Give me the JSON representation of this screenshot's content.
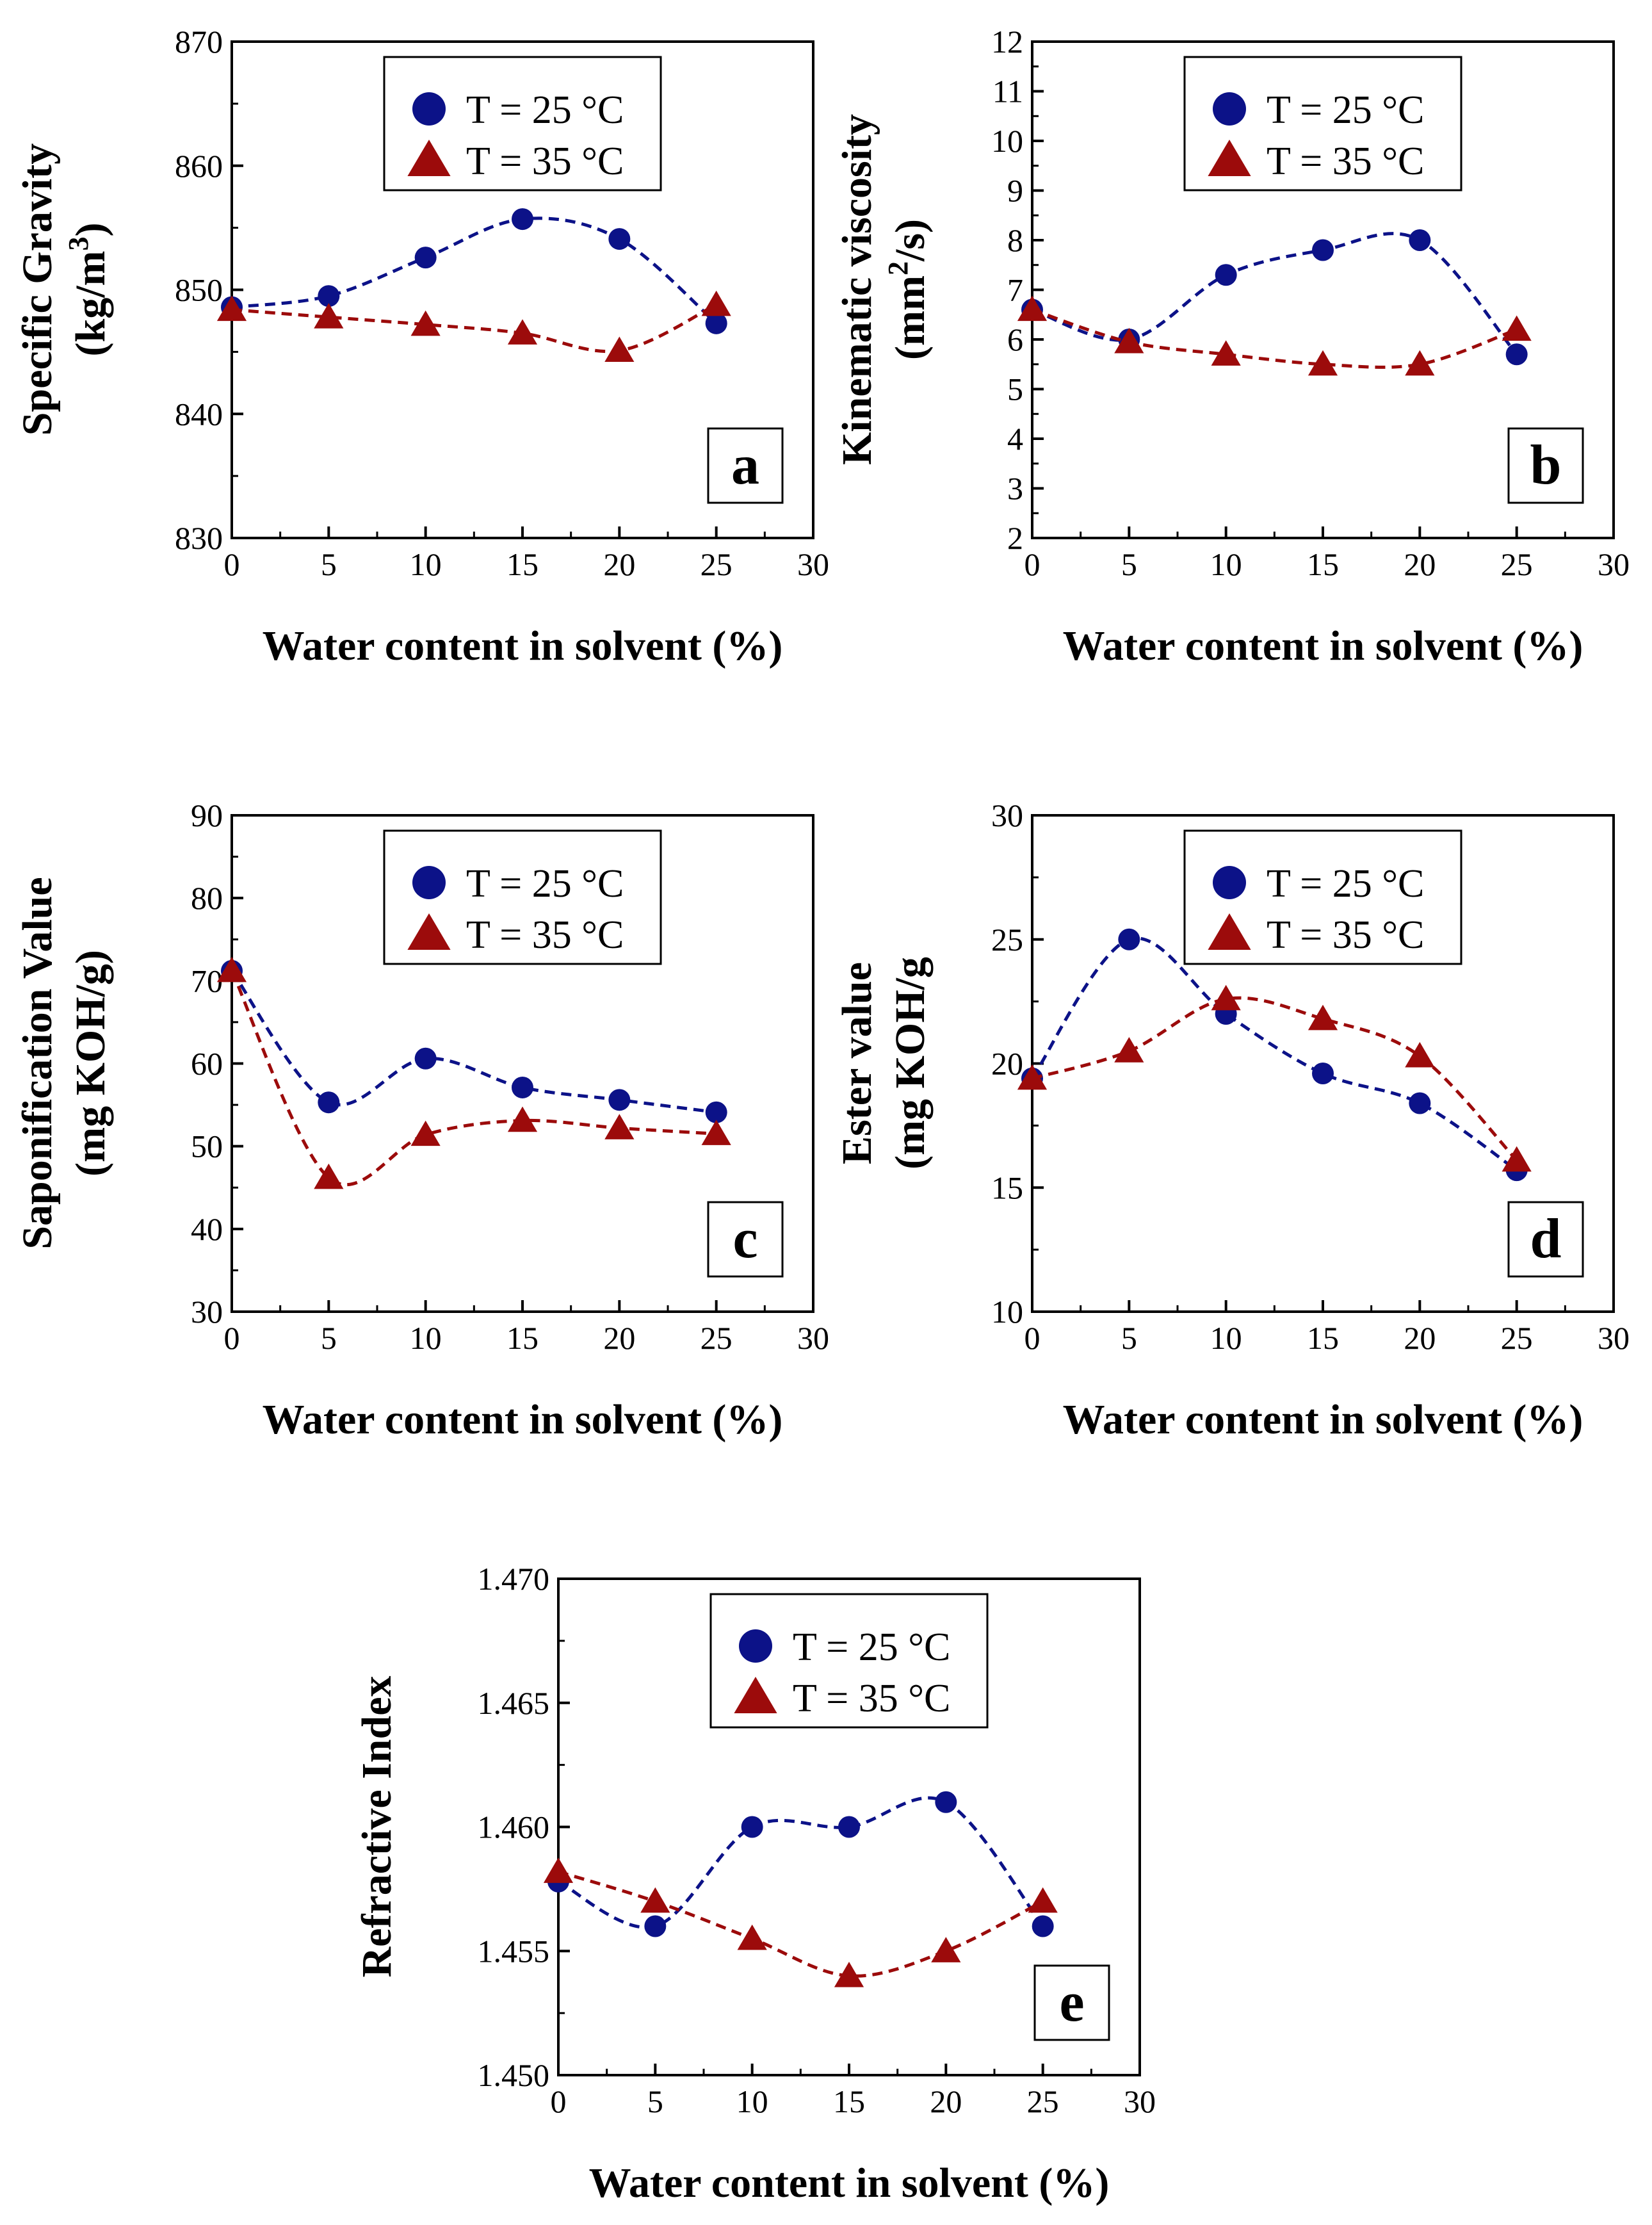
{
  "colors": {
    "series_25": "#0c1288",
    "series_35": "#9c0b0b",
    "axis": "#000000"
  },
  "chart_data": [
    {
      "panel": "a",
      "type": "scatter",
      "xlabel": "Water content in solvent (%)",
      "ylabel": [
        "Specific Gravity",
        "(kg/m",
        "3",
        ")"
      ],
      "xlim": [
        0,
        30
      ],
      "ylim": [
        830,
        870
      ],
      "xticks": [
        "0",
        "5",
        "10",
        "15",
        "20",
        "25",
        "30"
      ],
      "yticks": [
        "830",
        "840",
        "850",
        "860",
        "870"
      ],
      "legend_position": "top-right",
      "series": [
        {
          "name": "T = 25 °C",
          "marker": "circle",
          "x": [
            0,
            5,
            10,
            15,
            20,
            25
          ],
          "y": [
            848.6,
            849.5,
            852.6,
            855.7,
            854.1,
            847.3
          ]
        },
        {
          "name": "T = 35 °C",
          "marker": "triangle",
          "x": [
            0,
            5,
            10,
            15,
            20,
            25
          ],
          "y": [
            848.4,
            847.8,
            847.2,
            846.5,
            845.1,
            848.8
          ]
        }
      ]
    },
    {
      "panel": "b",
      "type": "scatter",
      "xlabel": "Water content in solvent (%)",
      "ylabel": [
        "Kinematic viscosity",
        "(mm",
        "2",
        "/s)"
      ],
      "xlim": [
        0,
        30
      ],
      "ylim": [
        2,
        12
      ],
      "xticks": [
        "0",
        "5",
        "10",
        "15",
        "20",
        "25",
        "30"
      ],
      "yticks": [
        "2",
        "3",
        "4",
        "5",
        "6",
        "7",
        "8",
        "9",
        "10",
        "11",
        "12"
      ],
      "legend_position": "top-right",
      "series": [
        {
          "name": "T = 25 °C",
          "marker": "circle",
          "x": [
            0,
            5,
            10,
            15,
            20,
            25
          ],
          "y": [
            6.6,
            6.0,
            7.3,
            7.8,
            8.0,
            5.7
          ]
        },
        {
          "name": "T = 35 °C",
          "marker": "triangle",
          "x": [
            0,
            5,
            10,
            15,
            20,
            25
          ],
          "y": [
            6.6,
            5.95,
            5.7,
            5.5,
            5.5,
            6.2
          ]
        }
      ]
    },
    {
      "panel": "c",
      "type": "scatter",
      "xlabel": "Water content in solvent (%)",
      "ylabel": [
        "Saponification Value",
        "(mg KOH/g)"
      ],
      "xlim": [
        0,
        30
      ],
      "ylim": [
        30,
        90
      ],
      "xticks": [
        "0",
        "5",
        "10",
        "15",
        "20",
        "25",
        "30"
      ],
      "yticks": [
        "30",
        "40",
        "50",
        "60",
        "70",
        "80",
        "90"
      ],
      "legend_position": "top-right",
      "series": [
        {
          "name": "T = 25 °C",
          "marker": "circle",
          "x": [
            0,
            5,
            10,
            15,
            20,
            25
          ],
          "y": [
            71.2,
            55.3,
            60.6,
            57.1,
            55.6,
            54.1
          ]
        },
        {
          "name": "T = 35 °C",
          "marker": "triangle",
          "x": [
            0,
            5,
            10,
            15,
            20,
            25
          ],
          "y": [
            71.2,
            46.2,
            51.4,
            53.1,
            52.2,
            51.5
          ]
        }
      ]
    },
    {
      "panel": "d",
      "type": "scatter",
      "xlabel": "Water content in solvent (%)",
      "ylabel": [
        "Ester value",
        "(mg KOH/g"
      ],
      "xlim": [
        0,
        30
      ],
      "ylim": [
        10,
        30
      ],
      "xticks": [
        "0",
        "5",
        "10",
        "15",
        "20",
        "25",
        "30"
      ],
      "yticks": [
        "10",
        "15",
        "20",
        "25",
        "30"
      ],
      "legend_position": "top-right",
      "series": [
        {
          "name": "T = 25 °C",
          "marker": "circle",
          "x": [
            0,
            5,
            10,
            15,
            20,
            25
          ],
          "y": [
            19.4,
            25.0,
            22.0,
            19.6,
            18.4,
            15.7
          ]
        },
        {
          "name": "T = 35 °C",
          "marker": "triangle",
          "x": [
            0,
            5,
            10,
            15,
            20,
            25
          ],
          "y": [
            19.4,
            20.5,
            22.6,
            21.8,
            20.3,
            16.1
          ]
        }
      ]
    },
    {
      "panel": "e",
      "type": "scatter",
      "xlabel": "Water content in solvent (%)",
      "ylabel": [
        "Refractive Index"
      ],
      "xlim": [
        0,
        30
      ],
      "ylim": [
        1.45,
        1.47
      ],
      "xticks": [
        "0",
        "5",
        "10",
        "15",
        "20",
        "25",
        "30"
      ],
      "yticks": [
        "1.450",
        "1.455",
        "1.460",
        "1.465",
        "1.470"
      ],
      "legend_position": "top-right",
      "series": [
        {
          "name": "T = 25 °C",
          "marker": "circle",
          "x": [
            0,
            5,
            10,
            15,
            20,
            25
          ],
          "y": [
            1.4578,
            1.456,
            1.46,
            1.46,
            1.461,
            1.456
          ]
        },
        {
          "name": "T = 35 °C",
          "marker": "triangle",
          "x": [
            0,
            5,
            10,
            15,
            20,
            25
          ],
          "y": [
            1.4582,
            1.457,
            1.4555,
            1.454,
            1.455,
            1.457
          ]
        }
      ]
    }
  ]
}
